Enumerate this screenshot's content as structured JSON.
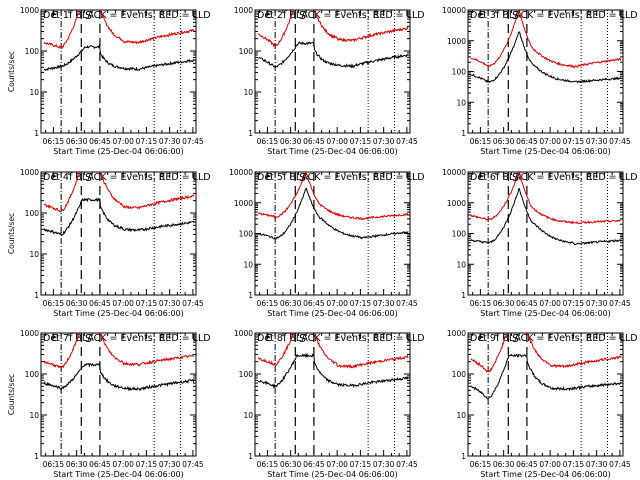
{
  "figure": {
    "background": "#ffffff"
  },
  "chart_data": [
    {
      "type": "line",
      "title": "Det 1f BLACK = Events, RED = LLD",
      "xlabel": "Start Time (25-Dec-04 06:06:00)",
      "ylabel": "Counts/sec",
      "yscale": "log",
      "ylim": [
        1,
        1000
      ],
      "xlim": [
        "06:07",
        "07:47"
      ],
      "ytick_labels": [
        "1",
        "10",
        "100",
        "1000"
      ],
      "xtick_labels": [
        "06:15",
        "06:30",
        "06:45",
        "07:00",
        "07:15",
        "07:30",
        "07:45"
      ],
      "markers": {
        "E1": "06:15",
        "S": "06:38",
        "E2": "07:25"
      },
      "vlines": {
        "dashdot": [
          "06:20"
        ],
        "dashed": [
          "06:33",
          "06:45"
        ],
        "dotted": [
          "07:20",
          "07:37"
        ]
      },
      "curve_shape": "saturated",
      "series": [
        {
          "color": "#000000",
          "values": [
            {
              "x": "06:10",
              "y": 35
            },
            {
              "x": "06:20",
              "y": 42
            },
            {
              "x": "06:45",
              "y": 90
            },
            {
              "x": "07:00",
              "y": 38
            },
            {
              "x": "07:45",
              "y": 60
            }
          ]
        },
        {
          "color": "#dd0000",
          "values": [
            {
              "x": "06:10",
              "y": 160
            },
            {
              "x": "06:20",
              "y": 120
            },
            {
              "x": "06:45",
              "y": 1000
            },
            {
              "x": "07:00",
              "y": 170
            },
            {
              "x": "07:45",
              "y": 320
            }
          ]
        }
      ]
    },
    {
      "type": "line",
      "title": "Det 2f BLACK = Events, RED = LLD",
      "xlabel": "Start Time (25-Dec-04 06:06:00)",
      "ylabel": "",
      "yscale": "log",
      "ylim": [
        1,
        1000
      ],
      "xlim": [
        "06:07",
        "07:47"
      ],
      "ytick_labels": [
        "1",
        "10",
        "100",
        "1000"
      ],
      "xtick_labels": [
        "06:15",
        "06:30",
        "06:45",
        "07:00",
        "07:15",
        "07:30",
        "07:45"
      ],
      "markers": {
        "E1": "06:15",
        "S": "06:38",
        "E2": "07:25"
      },
      "vlines": {
        "dashdot": [
          "06:20"
        ],
        "dashed": [
          "06:33",
          "06:45"
        ],
        "dotted": [
          "07:20",
          "07:37"
        ]
      },
      "curve_shape": "saturated",
      "series": [
        {
          "color": "#000000",
          "values": [
            {
              "x": "06:10",
              "y": 70
            },
            {
              "x": "06:20",
              "y": 40
            },
            {
              "x": "06:45",
              "y": 110
            },
            {
              "x": "07:00",
              "y": 45
            },
            {
              "x": "07:45",
              "y": 80
            }
          ]
        },
        {
          "color": "#dd0000",
          "values": [
            {
              "x": "06:10",
              "y": 260
            },
            {
              "x": "06:20",
              "y": 130
            },
            {
              "x": "06:45",
              "y": 1000
            },
            {
              "x": "07:00",
              "y": 190
            },
            {
              "x": "07:45",
              "y": 360
            }
          ]
        }
      ]
    },
    {
      "type": "line",
      "title": "Det 3f BLACK = Events, RED = LLD",
      "xlabel": "Start Time (25-Dec-04 06:06:00)",
      "ylabel": "",
      "yscale": "log",
      "ylim": [
        1,
        10000
      ],
      "xlim": [
        "06:07",
        "07:47"
      ],
      "ytick_labels": [
        "1",
        "10",
        "100",
        "1000",
        "10000"
      ],
      "xtick_labels": [
        "06:15",
        "06:30",
        "06:45",
        "07:00",
        "07:15",
        "07:30",
        "07:45"
      ],
      "markers": {
        "E1": "06:15",
        "S": "06:38",
        "E2": "07:25"
      },
      "vlines": {
        "dashdot": [
          "06:20"
        ],
        "dashed": [
          "06:33",
          "06:45"
        ],
        "dotted": [
          "07:20",
          "07:37"
        ]
      },
      "curve_shape": "peaked",
      "series": [
        {
          "color": "#000000",
          "values": [
            {
              "x": "06:10",
              "y": 80
            },
            {
              "x": "06:20",
              "y": 45
            },
            {
              "x": "06:40",
              "y": 2000
            },
            {
              "x": "06:50",
              "y": 150
            },
            {
              "x": "07:15",
              "y": 45
            },
            {
              "x": "07:45",
              "y": 60
            }
          ]
        },
        {
          "color": "#dd0000",
          "values": [
            {
              "x": "06:10",
              "y": 280
            },
            {
              "x": "06:20",
              "y": 150
            },
            {
              "x": "06:40",
              "y": 10000
            },
            {
              "x": "06:50",
              "y": 500
            },
            {
              "x": "07:15",
              "y": 140
            },
            {
              "x": "07:45",
              "y": 250
            }
          ]
        }
      ]
    },
    {
      "type": "line",
      "title": "Det 4f BLACK = Events, RED = LLD",
      "xlabel": "Start Time (25-Dec-04 06:06:00)",
      "ylabel": "Counts/sec",
      "yscale": "log",
      "ylim": [
        1,
        1000
      ],
      "xlim": [
        "06:07",
        "07:47"
      ],
      "ytick_labels": [
        "1",
        "10",
        "100",
        "1000"
      ],
      "xtick_labels": [
        "06:15",
        "06:30",
        "06:45",
        "07:00",
        "07:15",
        "07:30",
        "07:45"
      ],
      "markers": {
        "E1": "06:15",
        "S": "06:38",
        "E2": "07:25"
      },
      "vlines": {
        "dashdot": [
          "06:20"
        ],
        "dashed": [
          "06:33",
          "06:45"
        ],
        "dotted": [
          "07:20",
          "07:37"
        ]
      },
      "curve_shape": "saturated",
      "series": [
        {
          "color": "#000000",
          "values": [
            {
              "x": "06:10",
              "y": 40
            },
            {
              "x": "06:20",
              "y": 30
            },
            {
              "x": "06:45",
              "y": 150
            },
            {
              "x": "07:00",
              "y": 40
            },
            {
              "x": "07:45",
              "y": 60
            }
          ]
        },
        {
          "color": "#dd0000",
          "values": [
            {
              "x": "06:10",
              "y": 160
            },
            {
              "x": "06:20",
              "y": 110
            },
            {
              "x": "06:45",
              "y": 1000
            },
            {
              "x": "07:00",
              "y": 140
            },
            {
              "x": "07:45",
              "y": 260
            }
          ]
        }
      ]
    },
    {
      "type": "line",
      "title": "Det 5f BLACK = Events, RED = LLD",
      "xlabel": "Start Time (25-Dec-04 06:06:00)",
      "ylabel": "",
      "yscale": "log",
      "ylim": [
        1,
        10000
      ],
      "xlim": [
        "06:07",
        "07:47"
      ],
      "ytick_labels": [
        "1",
        "10",
        "100",
        "1000",
        "10000"
      ],
      "xtick_labels": [
        "06:15",
        "06:30",
        "06:45",
        "07:00",
        "07:15",
        "07:30",
        "07:45"
      ],
      "markers": {
        "E1": "06:15",
        "S": "06:38",
        "E2": "07:25"
      },
      "vlines": {
        "dashdot": [
          "06:20"
        ],
        "dashed": [
          "06:33",
          "06:45"
        ],
        "dotted": [
          "07:20",
          "07:37"
        ]
      },
      "curve_shape": "peaked",
      "series": [
        {
          "color": "#000000",
          "values": [
            {
              "x": "06:10",
              "y": 100
            },
            {
              "x": "06:20",
              "y": 70
            },
            {
              "x": "06:40",
              "y": 3000
            },
            {
              "x": "06:50",
              "y": 300
            },
            {
              "x": "07:15",
              "y": 70
            },
            {
              "x": "07:45",
              "y": 110
            }
          ]
        },
        {
          "color": "#dd0000",
          "values": [
            {
              "x": "06:10",
              "y": 450
            },
            {
              "x": "06:20",
              "y": 350
            },
            {
              "x": "06:40",
              "y": 10000
            },
            {
              "x": "06:50",
              "y": 800
            },
            {
              "x": "07:15",
              "y": 300
            },
            {
              "x": "07:45",
              "y": 420
            }
          ]
        }
      ]
    },
    {
      "type": "line",
      "title": "Det 6f BLACK = Events, RED = LLD",
      "xlabel": "Start Time (25-Dec-04 06:06:00)",
      "ylabel": "",
      "yscale": "log",
      "ylim": [
        1,
        10000
      ],
      "xlim": [
        "06:07",
        "07:47"
      ],
      "ytick_labels": [
        "1",
        "10",
        "100",
        "1000",
        "10000"
      ],
      "xtick_labels": [
        "06:15",
        "06:30",
        "06:45",
        "07:00",
        "07:15",
        "07:30",
        "07:45"
      ],
      "markers": {
        "E1": "06:15",
        "S": "06:38",
        "E2": "07:25"
      },
      "vlines": {
        "dashdot": [
          "06:20"
        ],
        "dashed": [
          "06:33",
          "06:45"
        ],
        "dotted": [
          "07:20",
          "07:37"
        ]
      },
      "curve_shape": "peaked",
      "series": [
        {
          "color": "#000000",
          "values": [
            {
              "x": "06:10",
              "y": 60
            },
            {
              "x": "06:20",
              "y": 50
            },
            {
              "x": "06:40",
              "y": 3000
            },
            {
              "x": "06:50",
              "y": 200
            },
            {
              "x": "07:15",
              "y": 45
            },
            {
              "x": "07:45",
              "y": 60
            }
          ]
        },
        {
          "color": "#dd0000",
          "values": [
            {
              "x": "06:10",
              "y": 380
            },
            {
              "x": "06:20",
              "y": 280
            },
            {
              "x": "06:40",
              "y": 10000
            },
            {
              "x": "06:50",
              "y": 600
            },
            {
              "x": "07:15",
              "y": 220
            },
            {
              "x": "07:45",
              "y": 260
            }
          ]
        }
      ]
    },
    {
      "type": "line",
      "title": "Det 7f BLACK = Events, RED = LLD",
      "xlabel": "Start Time (25-Dec-04 06:06:00)",
      "ylabel": "Counts/sec",
      "yscale": "log",
      "ylim": [
        1,
        1000
      ],
      "xlim": [
        "06:07",
        "07:47"
      ],
      "ytick_labels": [
        "1",
        "10",
        "100",
        "1000"
      ],
      "xtick_labels": [
        "06:15",
        "06:30",
        "06:45",
        "07:00",
        "07:15",
        "07:30",
        "07:45"
      ],
      "markers": {
        "E1": "06:15",
        "S": "06:38",
        "E2": "07:25"
      },
      "vlines": {
        "dashdot": [
          "06:20"
        ],
        "dashed": [
          "06:33",
          "06:45"
        ],
        "dotted": [
          "07:20",
          "07:37"
        ]
      },
      "curve_shape": "saturated",
      "series": [
        {
          "color": "#000000",
          "values": [
            {
              "x": "06:10",
              "y": 60
            },
            {
              "x": "06:20",
              "y": 45
            },
            {
              "x": "06:45",
              "y": 120
            },
            {
              "x": "07:00",
              "y": 45
            },
            {
              "x": "07:45",
              "y": 70
            }
          ]
        },
        {
          "color": "#dd0000",
          "values": [
            {
              "x": "06:10",
              "y": 200
            },
            {
              "x": "06:20",
              "y": 140
            },
            {
              "x": "06:45",
              "y": 1000
            },
            {
              "x": "07:00",
              "y": 180
            },
            {
              "x": "07:45",
              "y": 280
            }
          ]
        }
      ]
    },
    {
      "type": "line",
      "title": "Det 8f BLACK = Events, RED = LLD",
      "xlabel": "Start Time (25-Dec-04 06:06:00)",
      "ylabel": "",
      "yscale": "log",
      "ylim": [
        1,
        1000
      ],
      "xlim": [
        "06:07",
        "07:47"
      ],
      "ytick_labels": [
        "1",
        "10",
        "100",
        "1000"
      ],
      "xtick_labels": [
        "06:15",
        "06:30",
        "06:45",
        "07:00",
        "07:15",
        "07:30",
        "07:45"
      ],
      "markers": {
        "E1": "06:15",
        "S": "06:38",
        "E2": "07:25"
      },
      "vlines": {
        "dashdot": [
          "06:20"
        ],
        "dashed": [
          "06:33",
          "06:45"
        ],
        "dotted": [
          "07:20",
          "07:37"
        ]
      },
      "curve_shape": "saturated",
      "series": [
        {
          "color": "#000000",
          "values": [
            {
              "x": "06:10",
              "y": 70
            },
            {
              "x": "06:20",
              "y": 50
            },
            {
              "x": "06:45",
              "y": 200
            },
            {
              "x": "07:00",
              "y": 55
            },
            {
              "x": "07:45",
              "y": 80
            }
          ]
        },
        {
          "color": "#dd0000",
          "values": [
            {
              "x": "06:10",
              "y": 240
            },
            {
              "x": "06:20",
              "y": 170
            },
            {
              "x": "06:45",
              "y": 1000
            },
            {
              "x": "07:00",
              "y": 160
            },
            {
              "x": "07:45",
              "y": 260
            }
          ]
        }
      ]
    },
    {
      "type": "line",
      "title": "Det 9f BLACK = Events, RED = LLD",
      "xlabel": "Start Time (25-Dec-04 06:06:00)",
      "ylabel": "",
      "yscale": "log",
      "ylim": [
        1,
        1000
      ],
      "xlim": [
        "06:07",
        "07:47"
      ],
      "ytick_labels": [
        "1",
        "10",
        "100",
        "1000"
      ],
      "xtick_labels": [
        "06:15",
        "06:30",
        "06:45",
        "07:00",
        "07:15",
        "07:30",
        "07:45"
      ],
      "markers": {
        "E1": "06:15",
        "S": "06:38",
        "E2": "07:25"
      },
      "vlines": {
        "dashdot": [
          "06:20"
        ],
        "dashed": [
          "06:33",
          "06:45"
        ],
        "dotted": [
          "07:20",
          "07:37"
        ]
      },
      "curve_shape": "saturated",
      "series": [
        {
          "color": "#000000",
          "values": [
            {
              "x": "06:10",
              "y": 50
            },
            {
              "x": "06:20",
              "y": 25
            },
            {
              "x": "06:45",
              "y": 200
            },
            {
              "x": "07:00",
              "y": 45
            },
            {
              "x": "07:45",
              "y": 60
            }
          ]
        },
        {
          "color": "#dd0000",
          "values": [
            {
              "x": "06:10",
              "y": 230
            },
            {
              "x": "06:20",
              "y": 110
            },
            {
              "x": "06:45",
              "y": 1000
            },
            {
              "x": "07:00",
              "y": 160
            },
            {
              "x": "07:45",
              "y": 260
            }
          ]
        }
      ]
    }
  ]
}
